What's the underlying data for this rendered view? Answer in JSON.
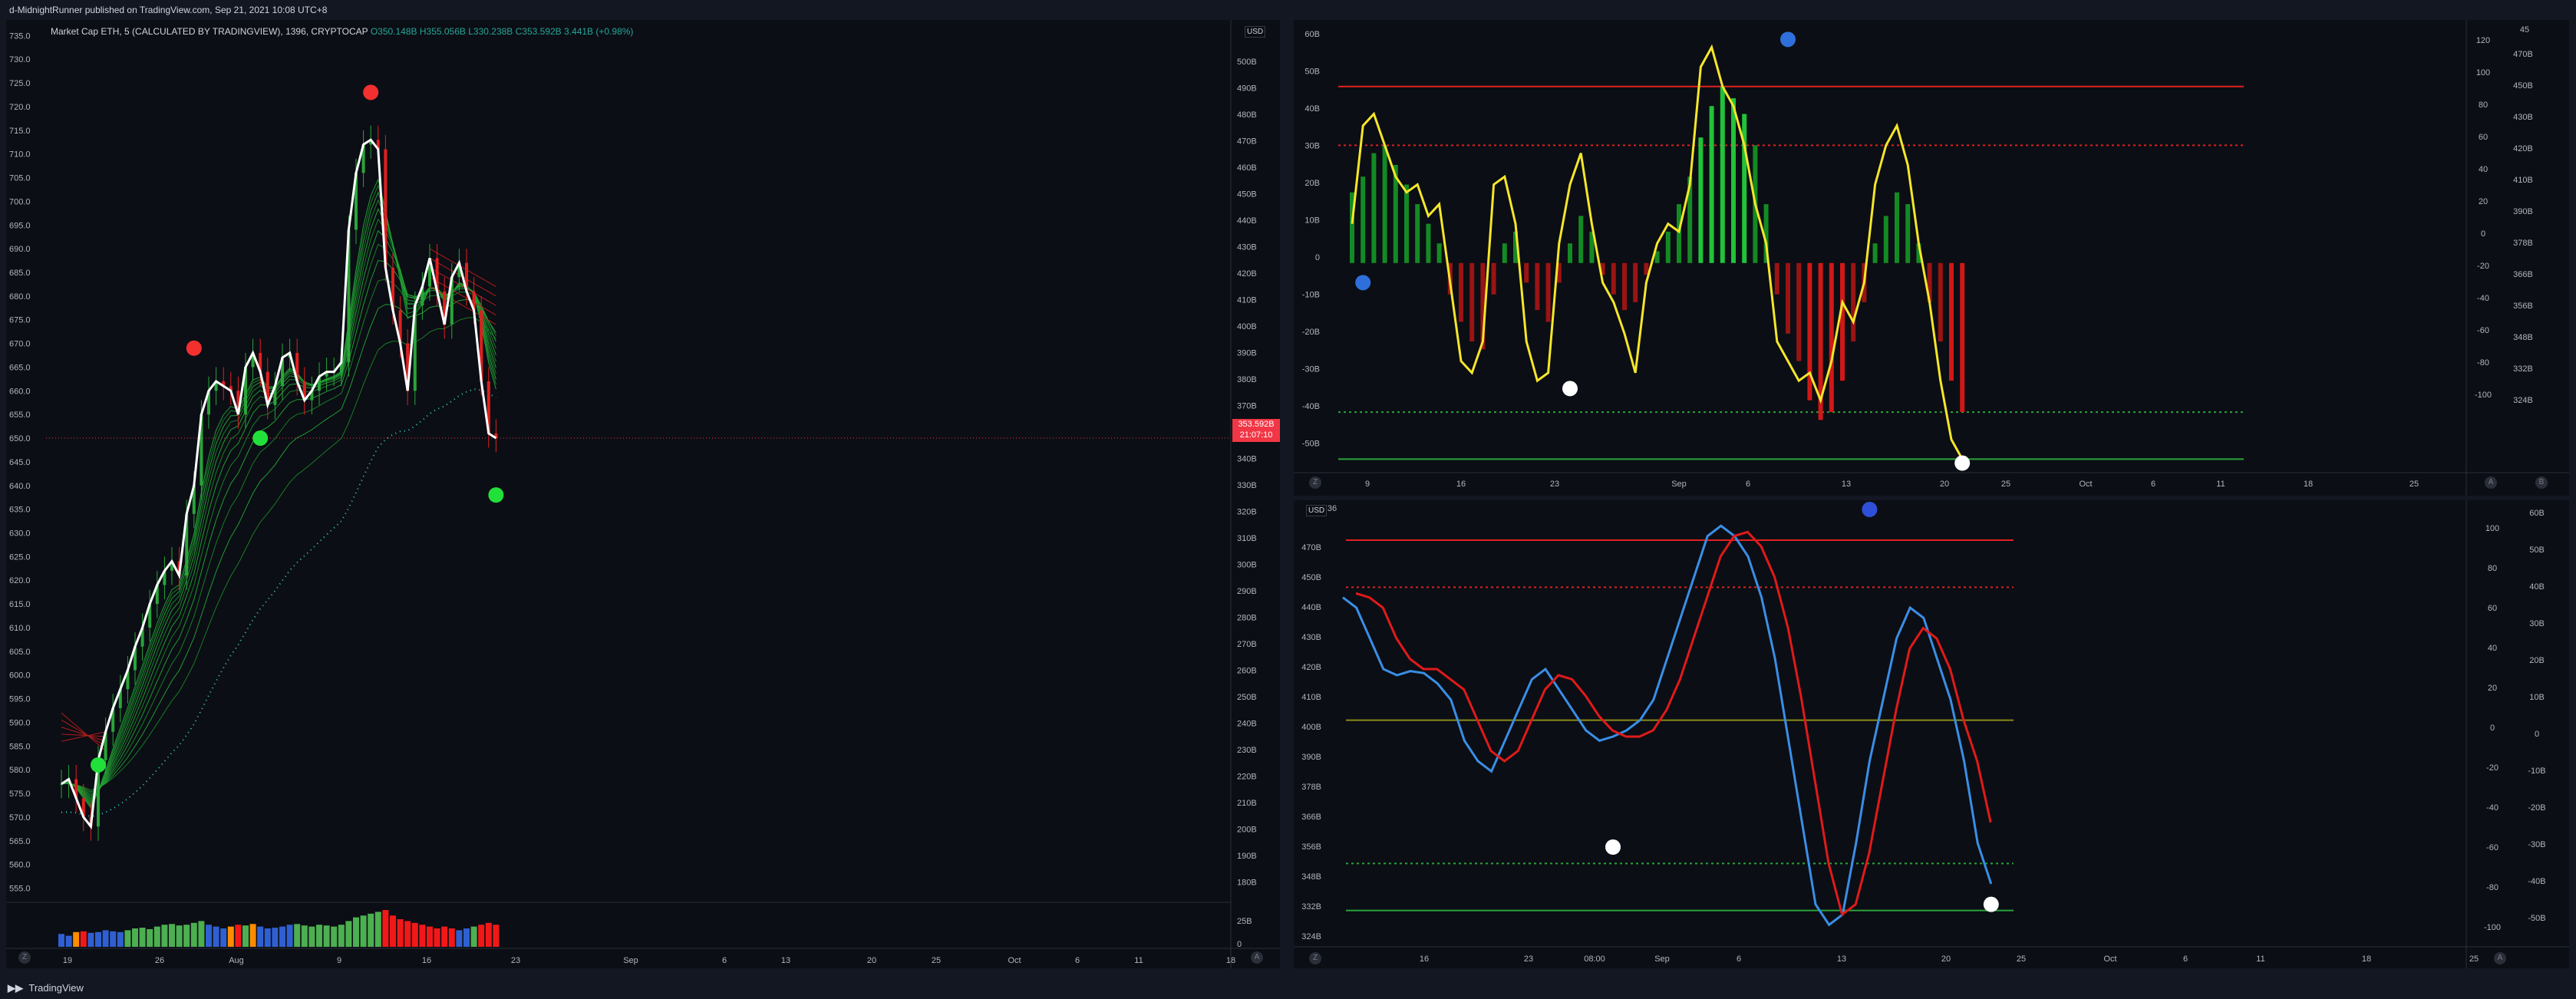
{
  "header": {
    "text": "d-MidnightRunner published on TradingView.com, Sep 21, 2021 10:08 UTC+8"
  },
  "footer": {
    "brand_icon": "tradingview-logo-icon",
    "brand": "TradingView"
  },
  "main_chart": {
    "legend": {
      "title": "Market Cap ETH, 5 (CALCULATED BY TRADINGVIEW), 1396, CRYPTOCAP",
      "ohlc": "O350.148B H355.056B L330.238B C353.592B 3.441B (+0.98%)"
    },
    "currency": "USD",
    "price_tag": {
      "value": "353.592B",
      "timer": "21:07:10"
    },
    "scale_buttons": [
      "Z",
      "A"
    ]
  },
  "chart_data": [
    {
      "type": "candlestick",
      "id": "main",
      "left_axis": [
        "735.0",
        "730.0",
        "725.0",
        "720.0",
        "715.0",
        "710.0",
        "705.0",
        "700.0",
        "695.0",
        "690.0",
        "685.0",
        "680.0",
        "675.0",
        "670.0",
        "665.0",
        "660.0",
        "655.0",
        "650.0",
        "645.0",
        "640.0",
        "635.0",
        "630.0",
        "625.0",
        "620.0",
        "615.0",
        "610.0",
        "605.0",
        "600.0",
        "595.0",
        "590.0",
        "585.0",
        "580.0",
        "575.0",
        "570.0",
        "565.0",
        "560.0",
        "555.0"
      ],
      "left_range": [
        552,
        737
      ],
      "right_axis": [
        "500B",
        "490B",
        "480B",
        "470B",
        "460B",
        "450B",
        "440B",
        "430B",
        "420B",
        "410B",
        "400B",
        "390B",
        "380B",
        "370B",
        "360B",
        "340B",
        "330B",
        "320B",
        "310B",
        "300B",
        "290B",
        "280B",
        "270B",
        "260B",
        "250B",
        "240B",
        "230B",
        "220B",
        "210B",
        "200B",
        "190B",
        "180B"
      ],
      "x_labels": [
        "19",
        "26",
        "Aug",
        "9",
        "16",
        "23",
        "Sep",
        "6",
        "13",
        "20",
        "25",
        "Oct",
        "6",
        "11",
        "18"
      ],
      "close": [
        577,
        578,
        574,
        570,
        568,
        582,
        588,
        593,
        597,
        601,
        606,
        610,
        615,
        619,
        622,
        624,
        621,
        634,
        640,
        655,
        660,
        662,
        661,
        660,
        655,
        665,
        668,
        664,
        657,
        661,
        667,
        668,
        662,
        658,
        660,
        663,
        664,
        664,
        666,
        694,
        706,
        712,
        713,
        711,
        686,
        677,
        670,
        660,
        678,
        682,
        688,
        681,
        674,
        684,
        687,
        681,
        677,
        662,
        651,
        650
      ],
      "markers": [
        {
          "i": 5,
          "price": 581,
          "color": "#22e03a"
        },
        {
          "i": 18,
          "price": 669,
          "color": "#f23030"
        },
        {
          "i": 27,
          "price": 650,
          "color": "#22e03a"
        },
        {
          "i": 42,
          "price": 723,
          "color": "#f23030"
        },
        {
          "i": 59,
          "price": 638,
          "color": "#22e03a"
        }
      ],
      "volume_colors": [
        "#2f5fd0",
        "#2f5fd0",
        "#ff8c00",
        "#f21818",
        "#2f5fd0",
        "#2f5fd0",
        "#2f5fd0",
        "#2f5fd0",
        "#2f5fd0",
        "#4caf50",
        "#4caf50",
        "#4caf50",
        "#4caf50",
        "#4caf50",
        "#4caf50",
        "#4caf50",
        "#4caf50",
        "#4caf50",
        "#4caf50",
        "#4caf50",
        "#2f5fd0",
        "#2f5fd0",
        "#2f5fd0",
        "#ff8c00",
        "#f21818",
        "#4caf50",
        "#ff8c00",
        "#2f5fd0",
        "#2f5fd0",
        "#2f5fd0",
        "#2f5fd0",
        "#2f5fd0",
        "#4caf50",
        "#4caf50",
        "#4caf50",
        "#4caf50",
        "#4caf50",
        "#4caf50",
        "#4caf50",
        "#4caf50",
        "#4caf50",
        "#4caf50",
        "#4caf50",
        "#4caf50",
        "#f21818",
        "#f21818",
        "#f21818",
        "#f21818",
        "#f21818",
        "#f21818",
        "#f21818",
        "#f21818",
        "#f21818",
        "#f21818",
        "#2f5fd0",
        "#2f5fd0",
        "#4caf50",
        "#f21818",
        "#f21818",
        "#f21818"
      ],
      "volume_values": [
        0.35,
        0.3,
        0.4,
        0.42,
        0.38,
        0.4,
        0.45,
        0.42,
        0.4,
        0.45,
        0.5,
        0.52,
        0.48,
        0.55,
        0.6,
        0.62,
        0.58,
        0.6,
        0.65,
        0.7,
        0.6,
        0.55,
        0.5,
        0.55,
        0.6,
        0.58,
        0.62,
        0.55,
        0.5,
        0.52,
        0.55,
        0.6,
        0.62,
        0.58,
        0.55,
        0.6,
        0.58,
        0.55,
        0.6,
        0.7,
        0.8,
        0.85,
        0.9,
        0.95,
        1.0,
        0.85,
        0.75,
        0.7,
        0.65,
        0.6,
        0.55,
        0.5,
        0.55,
        0.5,
        0.45,
        0.5,
        0.55,
        0.6,
        0.65,
        0.6
      ],
      "volume_axis": [
        "25B",
        "0"
      ]
    },
    {
      "type": "bar-line",
      "id": "oscillator",
      "left_axis": [
        "60B",
        "50B",
        "40B",
        "30B",
        "20B",
        "10B",
        "0",
        "-10B",
        "-20B",
        "-30B",
        "-40B",
        "-50B"
      ],
      "right_axis_a": [
        "120",
        "100",
        "80",
        "60",
        "40",
        "20",
        "0",
        "-20",
        "-40",
        "-60",
        "-80",
        "-100"
      ],
      "right_axis_b": [
        "470B",
        "450B",
        "430B",
        "420B",
        "410B",
        "390B",
        "378B",
        "366B",
        "356B",
        "348B",
        "332B",
        "324B"
      ],
      "corner_label": "45",
      "x_labels": [
        "9",
        "16",
        "23",
        "Sep",
        "6",
        "13",
        "20",
        "25",
        "Oct",
        "6",
        "11",
        "18",
        "25"
      ],
      "line": [
        10,
        35,
        38,
        30,
        22,
        18,
        20,
        12,
        15,
        -5,
        -25,
        -28,
        -20,
        20,
        22,
        10,
        -20,
        -30,
        -28,
        5,
        20,
        28,
        10,
        -5,
        -10,
        -18,
        -28,
        -5,
        5,
        10,
        8,
        20,
        50,
        55,
        45,
        40,
        30,
        15,
        5,
        -20,
        -25,
        -30,
        -28,
        -35,
        -25,
        -10,
        -15,
        -5,
        20,
        30,
        35,
        25,
        5,
        -10,
        -30,
        -45,
        -50
      ],
      "histogram": [
        18,
        22,
        28,
        30,
        25,
        20,
        15,
        10,
        5,
        -8,
        -15,
        -20,
        -22,
        -8,
        5,
        8,
        -5,
        -12,
        -15,
        -5,
        5,
        12,
        8,
        -3,
        -8,
        -12,
        -10,
        -3,
        3,
        8,
        15,
        22,
        32,
        40,
        45,
        42,
        38,
        30,
        15,
        -8,
        -18,
        -25,
        -35,
        -40,
        -38,
        -30,
        -20,
        -10,
        5,
        12,
        18,
        15,
        5,
        -10,
        -20,
        -30,
        -38
      ],
      "hist_range": [
        -55,
        60
      ],
      "levels": [
        {
          "v": 45,
          "style": "solid",
          "color": "#e02020"
        },
        {
          "v": 30,
          "style": "dotted",
          "color": "#e02020"
        },
        {
          "v": -38,
          "style": "dotted",
          "color": "#2aa43a"
        },
        {
          "v": -50,
          "style": "solid",
          "color": "#2aa43a"
        }
      ],
      "markers": [
        {
          "i": 1,
          "v": -5,
          "color": "#2f6fdb"
        },
        {
          "i": 20,
          "v": -32,
          "color": "#ffffff"
        },
        {
          "i": 40,
          "v": 57,
          "color": "#2f6fdb"
        },
        {
          "i": 56,
          "v": -51,
          "color": "#ffffff"
        }
      ]
    },
    {
      "type": "line",
      "id": "wave",
      "currency": "USD",
      "left_axis": [
        "470B",
        "450B",
        "440B",
        "430B",
        "420B",
        "410B",
        "400B",
        "390B",
        "378B",
        "366B",
        "356B",
        "348B",
        "332B",
        "324B"
      ],
      "right_axis_a": [
        "100",
        "80",
        "60",
        "40",
        "20",
        "0",
        "-20",
        "-40",
        "-60",
        "-80",
        "-100"
      ],
      "right_axis_b": [
        "60B",
        "50B",
        "40B",
        "30B",
        "20B",
        "10B",
        "0",
        "-10B",
        "-20B",
        "-30B",
        "-40B",
        "-50B"
      ],
      "corner_label": "36",
      "x_labels": [
        "16",
        "23",
        "08:00",
        "Sep",
        "6",
        "13",
        "20",
        "25",
        "Oct",
        "6",
        "11",
        "18",
        "25"
      ],
      "blue": [
        60,
        55,
        40,
        25,
        22,
        24,
        23,
        18,
        10,
        -10,
        -20,
        -25,
        -10,
        5,
        20,
        25,
        15,
        5,
        -5,
        -10,
        -8,
        -5,
        0,
        10,
        30,
        50,
        70,
        90,
        95,
        90,
        80,
        60,
        30,
        -10,
        -50,
        -90,
        -100,
        -95,
        -60,
        -20,
        10,
        40,
        55,
        50,
        30,
        10,
        -20,
        -60,
        -80
      ],
      "red": [
        62,
        60,
        55,
        40,
        30,
        25,
        25,
        20,
        15,
        0,
        -15,
        -20,
        -15,
        0,
        15,
        22,
        20,
        12,
        2,
        -5,
        -8,
        -8,
        -5,
        5,
        20,
        40,
        60,
        80,
        90,
        92,
        85,
        70,
        45,
        10,
        -30,
        -70,
        -95,
        -90,
        -65,
        -30,
        5,
        35,
        45,
        40,
        25,
        0,
        -20,
        -50
      ],
      "range": [
        -110,
        100
      ],
      "levels": [
        {
          "v": 88,
          "style": "solid",
          "color": "#e02020"
        },
        {
          "v": 65,
          "style": "dotted",
          "color": "#e02020"
        },
        {
          "v": 0,
          "style": "solid",
          "color": "#8a8a1a"
        },
        {
          "v": -70,
          "style": "dotted",
          "color": "#2aa43a"
        },
        {
          "v": -93,
          "style": "solid",
          "color": "#2aa43a"
        }
      ],
      "markers": [
        {
          "i": 20,
          "v": -62,
          "color": "#ffffff"
        },
        {
          "i": 39,
          "v": 103,
          "color": "#2f4fd8"
        },
        {
          "i": 48,
          "v": -90,
          "color": "#ffffff"
        }
      ]
    }
  ]
}
